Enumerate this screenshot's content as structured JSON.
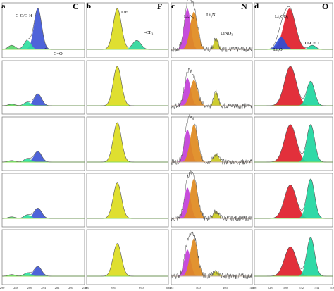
{
  "chart_data": [
    {
      "panel_letter": "a",
      "element": "C",
      "type": "line",
      "peak_labels": [
        "C-C/C-H",
        "C-O",
        "C=O"
      ],
      "x_tick_labels": [
        "290",
        "288",
        "286",
        "284",
        "282",
        "280",
        "278"
      ],
      "colors": {
        "fill_1": "#3f56d6",
        "fill_2": "#2fe0a0",
        "fill_3": "#58d86a",
        "baseline": "#8ad85a",
        "envelope": "#555555"
      },
      "rows": [
        {
          "peaks": [
            {
              "center": 284.8,
              "height": 1.0,
              "width": 0.55
            },
            {
              "center": 286.3,
              "height": 0.22,
              "width": 0.5
            },
            {
              "center": 288.6,
              "height": 0.1,
              "width": 0.5
            }
          ]
        },
        {
          "peaks": [
            {
              "center": 284.8,
              "height": 0.3,
              "width": 0.55
            },
            {
              "center": 286.3,
              "height": 0.09,
              "width": 0.5
            },
            {
              "center": 288.6,
              "height": 0.04,
              "width": 0.5
            }
          ]
        },
        {
          "peaks": [
            {
              "center": 284.8,
              "height": 0.27,
              "width": 0.55
            },
            {
              "center": 286.3,
              "height": 0.09,
              "width": 0.5
            },
            {
              "center": 288.6,
              "height": 0.04,
              "width": 0.5
            }
          ]
        },
        {
          "peaks": [
            {
              "center": 284.8,
              "height": 0.26,
              "width": 0.55
            },
            {
              "center": 286.3,
              "height": 0.09,
              "width": 0.5
            },
            {
              "center": 288.6,
              "height": 0.04,
              "width": 0.5
            }
          ]
        },
        {
          "peaks": [
            {
              "center": 284.8,
              "height": 0.24,
              "width": 0.55
            },
            {
              "center": 286.3,
              "height": 0.08,
              "width": 0.5
            },
            {
              "center": 288.6,
              "height": 0.04,
              "width": 0.5
            }
          ]
        }
      ]
    },
    {
      "panel_letter": "b",
      "element": "F",
      "type": "line",
      "peak_labels": [
        "LiF",
        "-CF₃"
      ],
      "x_tick_labels": [
        "680",
        "685",
        "690",
        "695"
      ],
      "colors": {
        "fill_1": "#dcdc1e",
        "fill_2": "#2fd69a",
        "baseline": "#8ad85a",
        "envelope": "#555555"
      },
      "rows": [
        {
          "peaks": [
            {
              "center": 685.0,
              "height": 1.0,
              "width": 0.8
            },
            {
              "center": 688.8,
              "height": 0.22,
              "width": 0.8
            }
          ]
        },
        {
          "peaks": [
            {
              "center": 685.0,
              "height": 1.0,
              "width": 0.8
            }
          ]
        },
        {
          "peaks": [
            {
              "center": 685.0,
              "height": 1.0,
              "width": 0.8
            }
          ]
        },
        {
          "peaks": [
            {
              "center": 685.0,
              "height": 0.9,
              "width": 0.8
            }
          ]
        },
        {
          "peaks": [
            {
              "center": 685.0,
              "height": 0.8,
              "width": 0.8
            }
          ]
        }
      ]
    },
    {
      "panel_letter": "c",
      "element": "N",
      "type": "line",
      "peak_labels": [
        "LiₓNᵧ",
        "Li₃N",
        "LiNO₃"
      ],
      "x_tick_labels": [
        "395",
        "400",
        "405",
        "410"
      ],
      "colors": {
        "fill_1": "#c23ed8",
        "fill_2": "#e08a1e",
        "fill_3": "#c9c81e",
        "baseline": "#c4b2a0",
        "noise": "#555555"
      },
      "rows": [
        {
          "peaks": [
            {
              "center": 398.0,
              "height": 1.0,
              "width": 0.6
            },
            {
              "center": 399.2,
              "height": 0.92,
              "width": 0.7
            },
            {
              "center": 403.3,
              "height": 0.28,
              "width": 0.4
            }
          ]
        },
        {
          "peaks": [
            {
              "center": 398.0,
              "height": 0.7,
              "width": 0.6
            },
            {
              "center": 399.2,
              "height": 0.65,
              "width": 0.7
            },
            {
              "center": 403.3,
              "height": 0.35,
              "width": 0.4
            }
          ]
        },
        {
          "peaks": [
            {
              "center": 398.0,
              "height": 0.82,
              "width": 0.6
            },
            {
              "center": 399.2,
              "height": 0.95,
              "width": 0.7
            },
            {
              "center": 403.3,
              "height": 0.2,
              "width": 0.5
            }
          ]
        },
        {
          "peaks": [
            {
              "center": 398.0,
              "height": 0.78,
              "width": 0.6
            },
            {
              "center": 399.2,
              "height": 1.0,
              "width": 0.7
            },
            {
              "center": 403.3,
              "height": 0.18,
              "width": 0.5
            }
          ]
        },
        {
          "peaks": [
            {
              "center": 398.0,
              "height": 0.65,
              "width": 0.6
            },
            {
              "center": 399.2,
              "height": 0.92,
              "width": 0.7
            },
            {
              "center": 403.3,
              "height": 0.12,
              "width": 0.5
            }
          ]
        }
      ]
    },
    {
      "panel_letter": "d",
      "element": "O",
      "type": "line",
      "peak_labels": [
        "Li₂CO₃",
        "Li₂O",
        "O-C=O"
      ],
      "x_tick_labels": [
        "526",
        "528",
        "530",
        "532",
        "534",
        "536"
      ],
      "colors": {
        "fill_1": "#e01e2a",
        "fill_2": "#1ed6a0",
        "fill_3": "#2f4fd6",
        "baseline": "#8ad85a",
        "envelope": "#555555"
      },
      "rows": [
        {
          "peaks": [
            {
              "center": 531.5,
              "height": 1.0,
              "width": 0.75
            },
            {
              "center": 528.6,
              "height": 0.1,
              "width": 0.45
            },
            {
              "center": 532.6,
              "height": 0.3,
              "width": 0.55
            }
          ]
        },
        {
          "peaks": [
            {
              "center": 531.4,
              "height": 1.0,
              "width": 0.75
            },
            {
              "center": 528.8,
              "height": 0.62,
              "width": 0.5
            }
          ]
        },
        {
          "peaks": [
            {
              "center": 531.4,
              "height": 0.95,
              "width": 0.75
            },
            {
              "center": 528.8,
              "height": 0.95,
              "width": 0.5
            }
          ]
        },
        {
          "peaks": [
            {
              "center": 531.4,
              "height": 0.85,
              "width": 0.75
            },
            {
              "center": 528.8,
              "height": 1.0,
              "width": 0.5
            }
          ]
        },
        {
          "peaks": [
            {
              "center": 531.4,
              "height": 0.72,
              "width": 0.75
            },
            {
              "center": 528.8,
              "height": 0.95,
              "width": 0.5
            }
          ]
        }
      ]
    }
  ]
}
